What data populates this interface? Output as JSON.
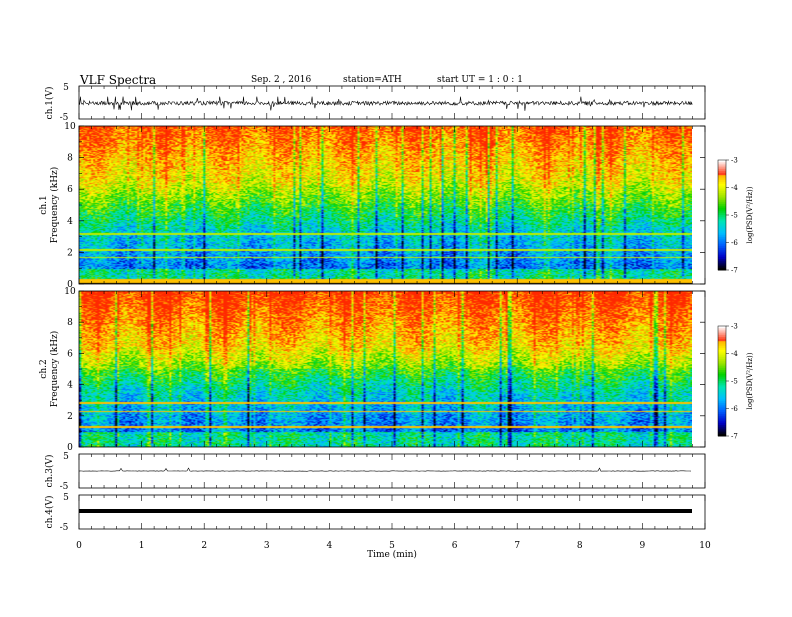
{
  "header": {
    "title": "VLF  Spectra",
    "date": "Sep. 2 , 2016",
    "station": "station=ATH",
    "start": "start  UT =   1 : 0  : 1"
  },
  "chart_data": [
    {
      "type": "line",
      "panel": "ch1-waveform",
      "ylabel": "ch.1(V)",
      "ylim": [
        -5,
        5
      ],
      "yticks": [
        "5",
        "-5"
      ],
      "xlim": [
        0,
        10
      ],
      "data_end_min": 9.8,
      "baseline": -0.2,
      "amplitude_range": [
        -2.5,
        1.8
      ],
      "color": "#000000"
    },
    {
      "type": "heatmap",
      "panel": "ch1-spectrogram",
      "ylabel": "ch.1\nFrequency (kHz)",
      "ylim": [
        0,
        10
      ],
      "yticks": [
        "0",
        "2",
        "4",
        "6",
        "8",
        "10"
      ],
      "xlim": [
        0,
        10
      ],
      "data_end_min": 9.8,
      "colorbar": {
        "label": "log(PSD(V²/Hz))",
        "ticks": [
          "-3",
          "-4",
          "-5",
          "-6",
          "-7"
        ],
        "range": [
          -7,
          -3
        ]
      }
    },
    {
      "type": "heatmap",
      "panel": "ch2-spectrogram",
      "ylabel": "ch.2\nFrequency (kHz)",
      "ylim": [
        0,
        10
      ],
      "yticks": [
        "0",
        "2",
        "4",
        "6",
        "8",
        "10"
      ],
      "xlim": [
        0,
        10
      ],
      "data_end_min": 9.8,
      "colorbar": {
        "label": "log(PSD(V²/Hz))",
        "ticks": [
          "-3",
          "-4",
          "-5",
          "-6",
          "-7"
        ],
        "range": [
          -7,
          -3
        ]
      }
    },
    {
      "type": "line",
      "panel": "ch3-waveform",
      "ylabel": "ch.3(V)",
      "ylim": [
        -5,
        5
      ],
      "yticks": [
        "5",
        "-5"
      ],
      "xlim": [
        0,
        10
      ],
      "data_end_min": 9.8,
      "baseline": 0,
      "color": "#000000"
    },
    {
      "type": "line",
      "panel": "ch4-waveform",
      "ylabel": "ch.4(V)",
      "ylim": [
        -5,
        5
      ],
      "yticks": [
        "5",
        "-5"
      ],
      "xlim": [
        0,
        10
      ],
      "data_end_min": 9.8,
      "baseline": 0,
      "color": "#000000",
      "xlabel": "Time  (min)",
      "xticks": [
        "0",
        "1",
        "2",
        "3",
        "4",
        "5",
        "6",
        "7",
        "8",
        "9",
        "10"
      ]
    }
  ],
  "colors": {
    "colormap": [
      "#000000",
      "#0000c8",
      "#0060ff",
      "#00c0ff",
      "#00e6b4",
      "#00d200",
      "#a0e600",
      "#ffff00",
      "#ffa000",
      "#ff2800",
      "#ffffff"
    ]
  }
}
